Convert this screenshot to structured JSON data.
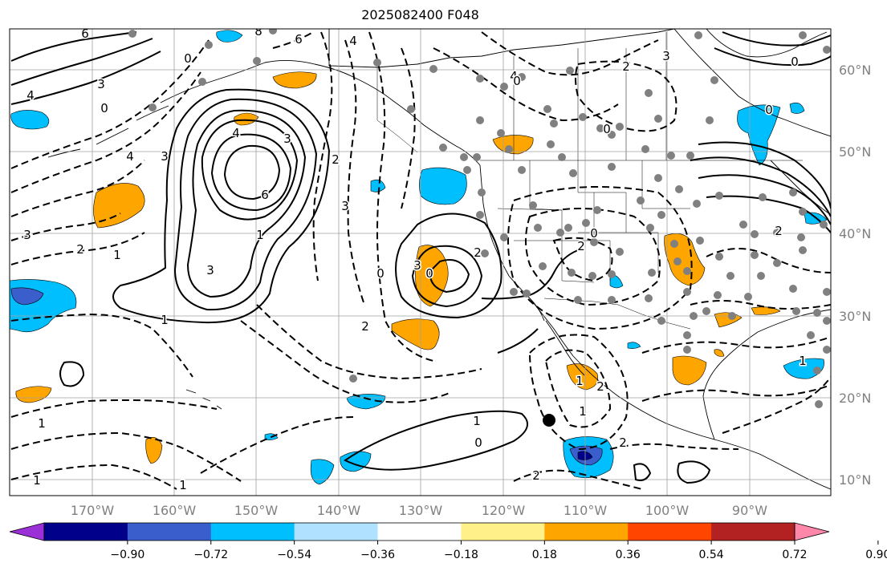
{
  "title": "2025082400 F048",
  "lat_labels": [
    "60°N",
    "50°N",
    "40°N",
    "30°N",
    "20°N",
    "10°N"
  ],
  "lon_labels": [
    "170°W",
    "160°W",
    "150°W",
    "140°W",
    "130°W",
    "120°W",
    "110°W",
    "100°W",
    "90°W"
  ],
  "colorbar": {
    "labels": [
      "−0.90",
      "−0.72",
      "−0.54",
      "−0.36",
      "−0.18",
      "0.18",
      "0.36",
      "0.54",
      "0.72",
      "0.90"
    ],
    "colors": [
      "#9b30d9",
      "#00008b",
      "#3a5fcd",
      "#00bfff",
      "#b0e2ff",
      "#ffffff",
      "#fff08a",
      "#ffa500",
      "#ff4500",
      "#b22222",
      "#ff88aa"
    ]
  },
  "contour_labels": [
    "6",
    "8",
    "6",
    "4",
    "4",
    "3",
    "4",
    "0",
    "3",
    "4",
    "6",
    "3",
    "3",
    "1",
    "2",
    "1",
    "1",
    "3",
    "0",
    "2",
    "2",
    "3",
    "3",
    "2",
    "0",
    "2",
    "0",
    "1",
    "1",
    "0",
    "2",
    "2",
    "2",
    "0",
    "0",
    "1",
    "1",
    "2",
    "1",
    "0",
    "1",
    "4",
    "2",
    "3",
    "0",
    "0",
    "1",
    "1"
  ],
  "colors": {
    "land_fill": "#ffffff",
    "grid": "#a0a0a0",
    "contour": "#000000",
    "marker": "#808080"
  }
}
